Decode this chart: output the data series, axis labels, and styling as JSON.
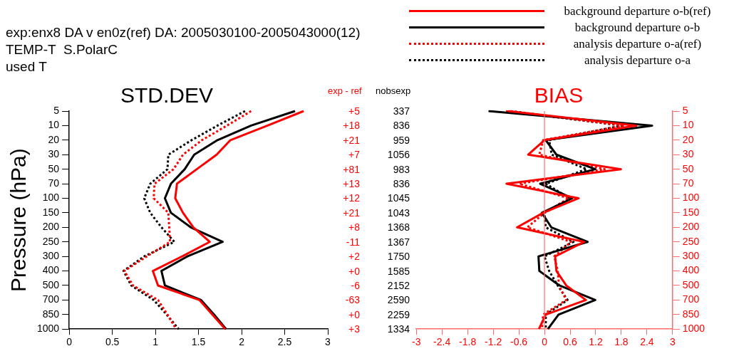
{
  "chart_data": [
    {
      "type": "other",
      "title": "exp:enx8 DA v en0z(ref) DA: 2005030100-2005043000(12)",
      "annotations": [
        "TEMP-T  S.PolarC",
        "used T"
      ]
    },
    {
      "type": "line",
      "orientation": "horizontal",
      "title": "STD.DEV",
      "ylabel": "Pressure (hPa)",
      "categories": [
        "5",
        "10",
        "20",
        "30",
        "50",
        "70",
        "100",
        "150",
        "200",
        "250",
        "300",
        "400",
        "500",
        "700",
        "850",
        "1000"
      ],
      "xlim": [
        0,
        3
      ],
      "xticks": [
        0,
        0.5,
        1,
        1.5,
        2,
        2.5,
        3
      ],
      "grid": false,
      "marker": "none",
      "series": [
        {
          "color": "#ff0000",
          "line_style": "solid",
          "values": [
            2.72,
            2.3,
            1.87,
            1.71,
            1.48,
            1.25,
            1.23,
            1.32,
            1.44,
            1.63,
            1.31,
            0.97,
            1.03,
            1.51,
            1.66,
            1.81
          ]
        },
        {
          "color": "#000000",
          "line_style": "solid",
          "values": [
            2.62,
            2.11,
            1.72,
            1.45,
            1.34,
            1.18,
            1.11,
            1.18,
            1.41,
            1.78,
            1.37,
            1.07,
            1.11,
            1.53,
            1.68,
            1.82
          ]
        },
        {
          "color": "#ff0000",
          "line_style": "dotted",
          "values": [
            2.11,
            1.83,
            1.54,
            1.32,
            1.21,
            0.99,
            0.98,
            1.15,
            1.16,
            1.17,
            0.9,
            0.64,
            0.74,
            1.03,
            1.14,
            1.24
          ]
        },
        {
          "color": "#000000",
          "line_style": "dotted",
          "values": [
            2.04,
            1.72,
            1.42,
            1.15,
            1.14,
            0.94,
            0.87,
            0.94,
            1.07,
            1.22,
            0.87,
            0.63,
            0.72,
            0.98,
            1.13,
            1.27
          ]
        }
      ]
    },
    {
      "type": "other",
      "annotations": [
        "exp - ref",
        "nobsexp",
        "+5",
        "337",
        "+18",
        "836",
        "+21",
        "959",
        "+7",
        "1056",
        "+81",
        "983",
        "+13",
        "836",
        "+12",
        "1045",
        "+21",
        "1043",
        "+8",
        "1368",
        "-11",
        "1367",
        "+2",
        "1750",
        "+0",
        "1585",
        "-6",
        "2152",
        "-63",
        "2590",
        "+0",
        "2259",
        "+3",
        "1334"
      ]
    },
    {
      "type": "line",
      "orientation": "horizontal",
      "title": "BIAS",
      "categories": [
        "5",
        "10",
        "20",
        "30",
        "50",
        "70",
        "100",
        "150",
        "200",
        "250",
        "300",
        "400",
        "500",
        "700",
        "850",
        "1000"
      ],
      "xlim": [
        -3,
        3
      ],
      "xticks": [
        -3,
        -2.4,
        -1.8,
        -1.2,
        -0.6,
        0,
        0.6,
        1.2,
        1.8,
        2.4,
        3
      ],
      "grid": false,
      "marker": "none",
      "legend": "top right",
      "ref_lines": [
        {
          "axis": "x",
          "value": 0,
          "color": "#ff7070"
        }
      ],
      "series": [
        {
          "name": "background departure o-b(ref)",
          "color": "#ff0000",
          "line_style": "solid",
          "values": [
            -0.85,
            2.15,
            0.0,
            -0.38,
            1.79,
            -0.89,
            0.8,
            -0.03,
            -0.64,
            0.93,
            0.25,
            0.28,
            0.51,
            0.97,
            0.03,
            -0.13
          ]
        },
        {
          "name": "background departure o-b",
          "color": "#000000",
          "line_style": "solid",
          "values": [
            -1.31,
            2.52,
            0.03,
            0.28,
            1.19,
            -0.1,
            0.65,
            -0.06,
            0.16,
            1.01,
            -0.14,
            -0.12,
            0.35,
            1.19,
            0.33,
            0.08
          ]
        },
        {
          "name": "analysis departure o-a(ref)",
          "color": "#ff0000",
          "line_style": "dotted",
          "values": [
            -0.9,
            1.87,
            -0.03,
            -0.12,
            1.41,
            -0.59,
            0.57,
            0.0,
            -0.4,
            0.62,
            0.23,
            0.31,
            0.34,
            0.51,
            -0.03,
            -0.06
          ]
        },
        {
          "name": "analysis departure o-a",
          "color": "#000000",
          "line_style": "dotted",
          "values": [
            -0.79,
            1.81,
            0.11,
            0.17,
            0.99,
            0.03,
            0.59,
            0.0,
            0.03,
            0.68,
            0.0,
            0.11,
            0.31,
            0.54,
            0.03,
            0.03
          ]
        }
      ]
    }
  ]
}
